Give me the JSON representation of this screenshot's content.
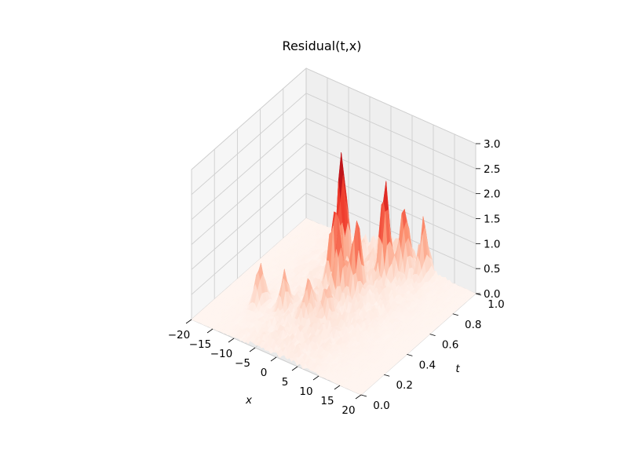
{
  "chart_data": {
    "type": "surface",
    "title": "Residual(t,x)",
    "xlabel": "x",
    "ylabel": "t",
    "zlabel": "",
    "x_ticks": [
      "−20",
      "−15",
      "−10",
      "−5",
      "0",
      "5",
      "10",
      "15",
      "20"
    ],
    "x_tick_values": [
      -20,
      -15,
      -10,
      -5,
      0,
      5,
      10,
      15,
      20
    ],
    "t_ticks": [
      "0.0",
      "0.2",
      "0.4",
      "0.6",
      "0.8",
      "1.0"
    ],
    "t_tick_values": [
      0.0,
      0.2,
      0.4,
      0.6,
      0.8,
      1.0
    ],
    "z_ticks": [
      "0.0",
      "0.5",
      "1.0",
      "1.5",
      "2.0",
      "2.5",
      "3.0"
    ],
    "z_tick_values": [
      0.0,
      0.5,
      1.0,
      1.5,
      2.0,
      2.5,
      3.0
    ],
    "xlim": [
      -20,
      20
    ],
    "tlim": [
      0,
      1
    ],
    "zlim": [
      0,
      3
    ],
    "colormap": "Reds",
    "grid": true,
    "peaks": [
      {
        "x": -4,
        "t": 0.72,
        "z": 2.6
      },
      {
        "x": -3,
        "t": 0.62,
        "z": 1.7
      },
      {
        "x": 0,
        "t": 0.55,
        "z": 1.4
      },
      {
        "x": 2,
        "t": 0.62,
        "z": 1.5
      },
      {
        "x": 4,
        "t": 0.8,
        "z": 1.9
      },
      {
        "x": 6,
        "t": 0.9,
        "z": 1.4
      },
      {
        "x": 9,
        "t": 0.95,
        "z": 1.1
      },
      {
        "x": -12,
        "t": 0.3,
        "z": 0.9
      },
      {
        "x": -7,
        "t": 0.33,
        "z": 0.8
      },
      {
        "x": -2,
        "t": 0.35,
        "z": 0.7
      },
      {
        "x": 1,
        "t": 0.4,
        "z": 0.6
      }
    ]
  }
}
